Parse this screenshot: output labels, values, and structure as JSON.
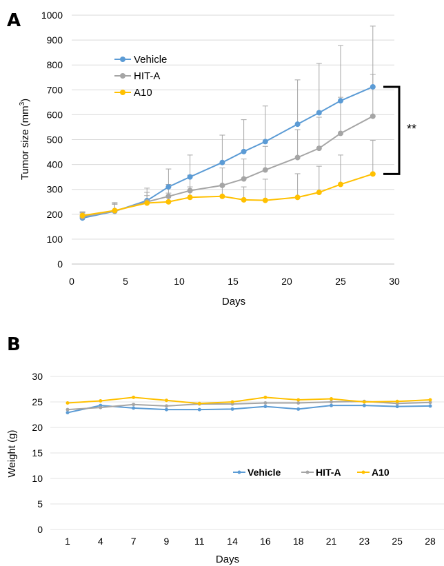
{
  "chart_data": [
    {
      "panel": "A",
      "type": "line",
      "xlabel": "Days",
      "ylabel": "Tumor size (mm3)",
      "ylabel_main": "Tumor size (mm",
      "ylabel_sup": "3",
      "ylabel_tail": ")",
      "xlim": [
        0,
        30
      ],
      "ylim": [
        0,
        1000
      ],
      "x_ticks": [
        0,
        5,
        10,
        15,
        20,
        25,
        30
      ],
      "y_ticks": [
        0,
        100,
        200,
        300,
        400,
        500,
        600,
        700,
        800,
        900,
        1000
      ],
      "grid": true,
      "legend_position": "top-left",
      "x": [
        1,
        4,
        7,
        9,
        11,
        14,
        16,
        18,
        21,
        23,
        25,
        28
      ],
      "series": [
        {
          "name": "Vehicle",
          "color": "#5b9bd5",
          "values": [
            185,
            212,
            255,
            310,
            350,
            408,
            452,
            492,
            562,
            608,
            656,
            712
          ],
          "errors": [
            20,
            35,
            50,
            72,
            88,
            110,
            128,
            143,
            178,
            198,
            222,
            244
          ]
        },
        {
          "name": "HIT-A",
          "color": "#a5a5a5",
          "values": [
            190,
            213,
            250,
            272,
            295,
            316,
            342,
            378,
            428,
            465,
            525,
            594
          ],
          "errors": [
            18,
            30,
            38,
            48,
            62,
            70,
            80,
            95,
            112,
            125,
            145,
            168
          ]
        },
        {
          "name": "A10",
          "color": "#ffc000",
          "values": [
            195,
            215,
            245,
            250,
            268,
            272,
            258,
            256,
            268,
            288,
            320,
            362
          ],
          "errors": [
            15,
            25,
            30,
            35,
            42,
            45,
            52,
            85,
            95,
            105,
            118,
            135
          ]
        }
      ],
      "annotation": "**"
    },
    {
      "panel": "B",
      "type": "line",
      "xlabel": "Days",
      "ylabel": "Weight (g)",
      "ylim": [
        0,
        30
      ],
      "y_ticks": [
        0,
        5,
        10,
        15,
        20,
        25,
        30
      ],
      "categories": [
        "1",
        "4",
        "7",
        "9",
        "11",
        "14",
        "16",
        "18",
        "21",
        "23",
        "25",
        "28"
      ],
      "grid": true,
      "legend_position": "center-right",
      "series": [
        {
          "name": "Vehicle",
          "color": "#5b9bd5",
          "values": [
            22.9,
            24.3,
            23.8,
            23.5,
            23.5,
            23.6,
            24.1,
            23.6,
            24.3,
            24.3,
            24.1,
            24.2
          ]
        },
        {
          "name": "HIT-A",
          "color": "#a5a5a5",
          "values": [
            23.5,
            23.9,
            24.5,
            24.2,
            24.6,
            24.6,
            24.8,
            24.8,
            25.0,
            25.1,
            24.7,
            24.9
          ]
        },
        {
          "name": "A10",
          "color": "#ffc000",
          "values": [
            24.8,
            25.2,
            25.9,
            25.3,
            24.7,
            25.0,
            25.9,
            25.4,
            25.6,
            25.0,
            25.1,
            25.4
          ]
        }
      ]
    }
  ]
}
